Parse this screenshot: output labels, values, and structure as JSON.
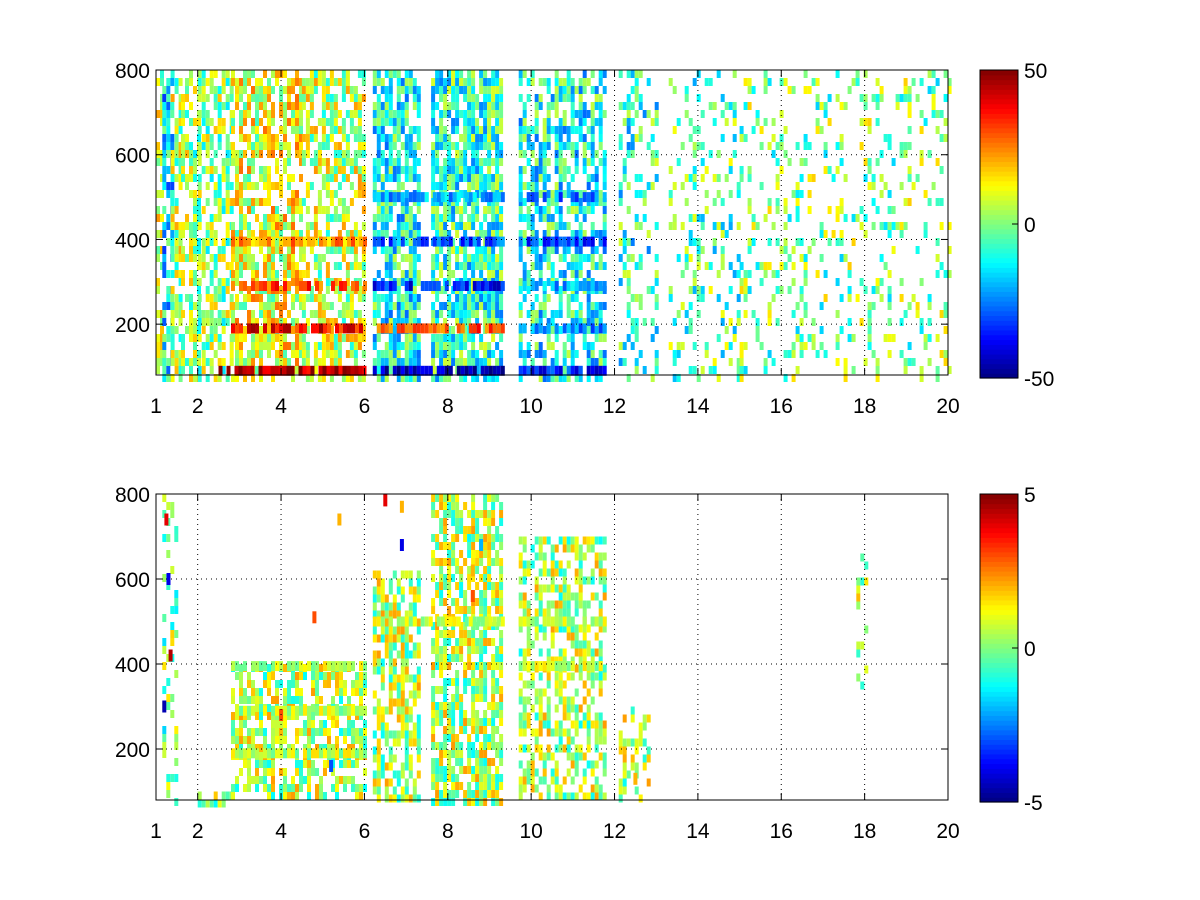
{
  "chart_data": [
    {
      "type": "heatmap",
      "title": "",
      "xlabel": "",
      "ylabel": "",
      "xlim": [
        1,
        20
      ],
      "ylim": [
        80,
        800
      ],
      "x_ticks": [
        1,
        2,
        4,
        6,
        8,
        10,
        12,
        14,
        16,
        18,
        20
      ],
      "y_ticks": [
        200,
        400,
        600,
        800
      ],
      "colormap": "jet",
      "clim": [
        -50,
        50
      ],
      "colorbar_ticks": [
        -50,
        0,
        50
      ],
      "grid": true,
      "columns": [
        {
          "x0": 1.0,
          "x1": 1.15,
          "y0": 80,
          "y1": 800,
          "v": 8,
          "density": 0.5
        },
        {
          "x0": 1.15,
          "x1": 1.35,
          "y0": 80,
          "y1": 800,
          "v": -15,
          "density": 0.7
        },
        {
          "x0": 1.35,
          "x1": 1.6,
          "y0": 80,
          "y1": 800,
          "v": 5,
          "density": 0.6
        },
        {
          "x0": 1.6,
          "x1": 2.0,
          "y0": 80,
          "y1": 800,
          "v": 3,
          "density": 0.55
        },
        {
          "x0": 2.0,
          "x1": 2.8,
          "y0": 80,
          "y1": 800,
          "v": 2,
          "density": 0.6
        },
        {
          "x0": 2.8,
          "x1": 4.5,
          "y0": 80,
          "y1": 800,
          "v": 10,
          "density": 0.7
        },
        {
          "x0": 4.5,
          "x1": 6.0,
          "y0": 80,
          "y1": 800,
          "v": 6,
          "density": 0.6
        },
        {
          "x0": 6.2,
          "x1": 7.3,
          "y0": 80,
          "y1": 800,
          "v": -10,
          "density": 0.75
        },
        {
          "x0": 7.6,
          "x1": 9.3,
          "y0": 80,
          "y1": 800,
          "v": -8,
          "density": 0.8
        },
        {
          "x0": 9.7,
          "x1": 11.8,
          "y0": 80,
          "y1": 800,
          "v": -10,
          "density": 0.6
        },
        {
          "x0": 12.1,
          "x1": 13.0,
          "y0": 80,
          "y1": 800,
          "v": -8,
          "density": 0.35
        },
        {
          "x0": 13.3,
          "x1": 15.0,
          "y0": 80,
          "y1": 800,
          "v": -4,
          "density": 0.25
        },
        {
          "x0": 15.0,
          "x1": 20.0,
          "y0": 80,
          "y1": 800,
          "v": 0,
          "density": 0.2
        }
      ],
      "bands": [
        {
          "x0": 2.8,
          "x1": 6.0,
          "y": 190,
          "v": 38
        },
        {
          "x0": 2.8,
          "x1": 6.0,
          "y": 290,
          "v": 30
        },
        {
          "x0": 2.8,
          "x1": 6.0,
          "y": 395,
          "v": 22
        },
        {
          "x0": 2.5,
          "x1": 6.0,
          "y": 90,
          "v": 45
        },
        {
          "x0": 6.2,
          "x1": 9.3,
          "y": 190,
          "v": 30
        },
        {
          "x0": 6.2,
          "x1": 9.3,
          "y": 290,
          "v": -35
        },
        {
          "x0": 6.2,
          "x1": 9.3,
          "y": 395,
          "v": -30
        },
        {
          "x0": 6.2,
          "x1": 9.3,
          "y": 500,
          "v": -20
        },
        {
          "x0": 6.2,
          "x1": 9.3,
          "y": 90,
          "v": -45
        },
        {
          "x0": 9.7,
          "x1": 11.8,
          "y": 290,
          "v": -20
        },
        {
          "x0": 9.7,
          "x1": 11.8,
          "y": 395,
          "v": -30
        },
        {
          "x0": 9.7,
          "x1": 11.8,
          "y": 500,
          "v": -25
        },
        {
          "x0": 9.7,
          "x1": 11.8,
          "y": 190,
          "v": -25
        },
        {
          "x0": 9.7,
          "x1": 11.8,
          "y": 90,
          "v": -35
        }
      ]
    },
    {
      "type": "heatmap",
      "title": "",
      "xlabel": "",
      "ylabel": "",
      "xlim": [
        1,
        20
      ],
      "ylim": [
        80,
        800
      ],
      "x_ticks": [
        1,
        2,
        4,
        6,
        8,
        10,
        12,
        14,
        16,
        18,
        20
      ],
      "y_ticks": [
        200,
        400,
        600,
        800
      ],
      "colormap": "jet",
      "clim": [
        -5,
        5
      ],
      "colorbar_ticks": [
        -5,
        0,
        5
      ],
      "grid": true,
      "columns": [
        {
          "x0": 1.15,
          "x1": 1.5,
          "y0": 80,
          "y1": 800,
          "v": 0,
          "density": 0.35
        },
        {
          "x0": 2.0,
          "x1": 2.8,
          "y0": 80,
          "y1": 100,
          "v": 0.5,
          "density": 0.6
        },
        {
          "x0": 2.8,
          "x1": 6.0,
          "y0": 80,
          "y1": 400,
          "v": 0.5,
          "density": 0.6
        },
        {
          "x0": 6.2,
          "x1": 7.3,
          "y0": 80,
          "y1": 620,
          "v": 0.5,
          "density": 0.65
        },
        {
          "x0": 7.6,
          "x1": 9.3,
          "y0": 80,
          "y1": 800,
          "v": 0.5,
          "density": 0.7
        },
        {
          "x0": 9.7,
          "x1": 11.8,
          "y0": 80,
          "y1": 700,
          "v": 0.5,
          "density": 0.55
        },
        {
          "x0": 12.1,
          "x1": 12.8,
          "y0": 80,
          "y1": 300,
          "v": 0.5,
          "density": 0.3
        },
        {
          "x0": 17.8,
          "x1": 18.0,
          "y0": 350,
          "y1": 660,
          "v": 0.5,
          "density": 0.2
        }
      ],
      "bands": [
        {
          "x0": 2.8,
          "x1": 6.0,
          "y": 190,
          "v": 0.6
        },
        {
          "x0": 2.8,
          "x1": 6.0,
          "y": 290,
          "v": 0.6
        },
        {
          "x0": 2.8,
          "x1": 6.0,
          "y": 395,
          "v": 0.6
        },
        {
          "x0": 6.2,
          "x1": 9.3,
          "y": 500,
          "v": 0.6
        },
        {
          "x0": 9.7,
          "x1": 11.8,
          "y": 500,
          "v": 0.6
        },
        {
          "x0": 9.7,
          "x1": 11.8,
          "y": 395,
          "v": 0.6
        }
      ],
      "outliers": [
        {
          "x": 1.25,
          "y": 740,
          "v": 4
        },
        {
          "x": 1.3,
          "y": 600,
          "v": -4
        },
        {
          "x": 1.35,
          "y": 420,
          "v": 4.5
        },
        {
          "x": 1.2,
          "y": 300,
          "v": -4.5
        },
        {
          "x": 6.5,
          "y": 785,
          "v": 4
        },
        {
          "x": 6.9,
          "y": 770,
          "v": 2
        },
        {
          "x": 6.9,
          "y": 680,
          "v": -4
        },
        {
          "x": 8.6,
          "y": 560,
          "v": 3
        },
        {
          "x": 8.6,
          "y": 620,
          "v": 2
        },
        {
          "x": 8.8,
          "y": 680,
          "v": -2
        },
        {
          "x": 4.8,
          "y": 510,
          "v": 3
        },
        {
          "x": 5.4,
          "y": 740,
          "v": 2
        },
        {
          "x": 4.0,
          "y": 280,
          "v": 3
        },
        {
          "x": 5.2,
          "y": 160,
          "v": -3
        },
        {
          "x": 12.5,
          "y": 130,
          "v": 2
        }
      ]
    }
  ]
}
